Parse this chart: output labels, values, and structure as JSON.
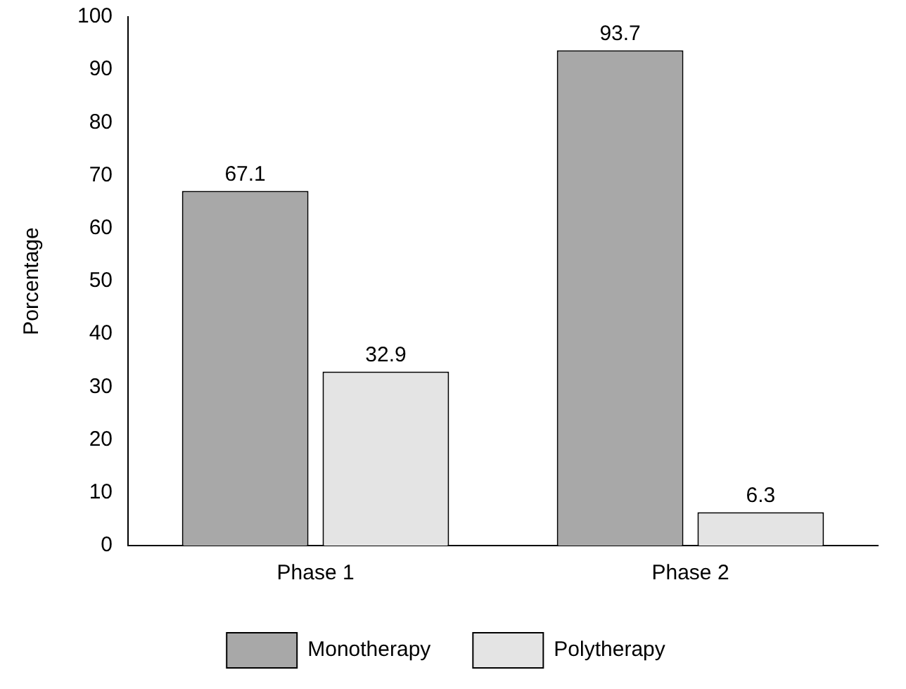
{
  "chart_data": {
    "type": "bar",
    "ylabel": "Porcentage",
    "categories": [
      "Phase 1",
      "Phase 2"
    ],
    "series": [
      {
        "name": "Monotherapy",
        "color": "#a8a8a8",
        "values": [
          67.1,
          93.7
        ]
      },
      {
        "name": "Polytherapy",
        "color": "#e4e4e4",
        "values": [
          32.9,
          6.3
        ]
      }
    ],
    "ylim": [
      0,
      100
    ],
    "yticks": [
      0,
      10,
      20,
      30,
      40,
      50,
      60,
      70,
      80,
      90,
      100
    ],
    "data_labels": true,
    "legend": "bottom",
    "grid": false
  }
}
